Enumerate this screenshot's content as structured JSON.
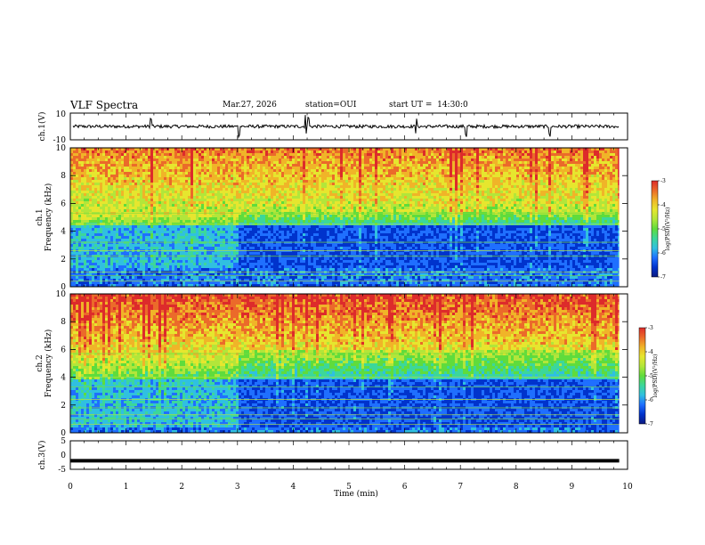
{
  "header": {
    "title": "VLF Spectra",
    "date": "Mar.27, 2026",
    "station": "station=OUI",
    "start": "start UT =  14:30:0"
  },
  "colormap": [
    "#0a0a0a",
    "#0b1a80",
    "#0033cc",
    "#1f6fff",
    "#30c0e0",
    "#3cd79a",
    "#5fdc3c",
    "#b2e63a",
    "#e6e62e",
    "#f0b428",
    "#eb6a2a",
    "#dd2b2b"
  ],
  "chart_data": [
    {
      "type": "line",
      "name": "ch1-waveform",
      "ylabel": "ch.1(V)",
      "ylim": [
        -10,
        10
      ],
      "y_ticks": [
        "10",
        "-10"
      ],
      "baseline": 0,
      "noise_amplitude": 1.2,
      "spikes_min": [
        1.45,
        3.02,
        4.22,
        4.28,
        6.2,
        7.1,
        8.6
      ]
    },
    {
      "type": "heatmap",
      "name": "ch1-spectrogram",
      "ylabel": "ch.1 Frequency (kHz)",
      "xlim": [
        0,
        10
      ],
      "ylim": [
        0,
        10
      ],
      "y_ticks": [
        "0",
        "2",
        "4",
        "6",
        "8",
        "10"
      ],
      "data_extent_min": [
        0,
        9.85
      ],
      "colorbar": {
        "label": "log(PSD)(V²/Hz)",
        "ticks": [
          "-3",
          "-4",
          "-5",
          "-6",
          "-7"
        ],
        "range": [
          -7,
          -3
        ]
      },
      "features": {
        "upper_band_khz": [
          5.5,
          10
        ],
        "dark_band_khz": [
          1.5,
          4.5
        ],
        "transition_min": 3.0,
        "narrowband_lines_khz": [
          0.4,
          0.8,
          1.05,
          2.2,
          2.6,
          3.2,
          4.5,
          5.3
        ]
      }
    },
    {
      "type": "heatmap",
      "name": "ch2-spectrogram",
      "ylabel": "ch.2 Frequency (kHz)",
      "xlim": [
        0,
        10
      ],
      "ylim": [
        0,
        10
      ],
      "y_ticks": [
        "0",
        "2",
        "4",
        "6",
        "8",
        "10"
      ],
      "data_extent_min": [
        0,
        9.85
      ],
      "colorbar": {
        "label": "log(PSD)(V²/Hz)",
        "ticks": [
          "-3",
          "-4",
          "-5",
          "-6",
          "-7"
        ],
        "range": [
          -7,
          -3
        ]
      },
      "features": {
        "upper_band_khz": [
          6,
          10
        ],
        "dark_band_khz": [
          0.5,
          4
        ],
        "transition_min": 3.0,
        "narrowband_lines_khz": [
          0.6,
          1.0,
          1.3,
          1.8,
          2.4,
          3.3,
          4.0,
          5.7
        ]
      }
    },
    {
      "type": "line",
      "name": "ch3-waveform",
      "ylabel": "ch.3(V)",
      "xlabel": "Time (min)",
      "ylim": [
        -5,
        5
      ],
      "y_ticks": [
        "5",
        "0",
        "-5"
      ],
      "x_ticks": [
        "0",
        "1",
        "2",
        "3",
        "4",
        "5",
        "6",
        "7",
        "8",
        "9",
        "10"
      ],
      "constant_value": -2
    }
  ]
}
